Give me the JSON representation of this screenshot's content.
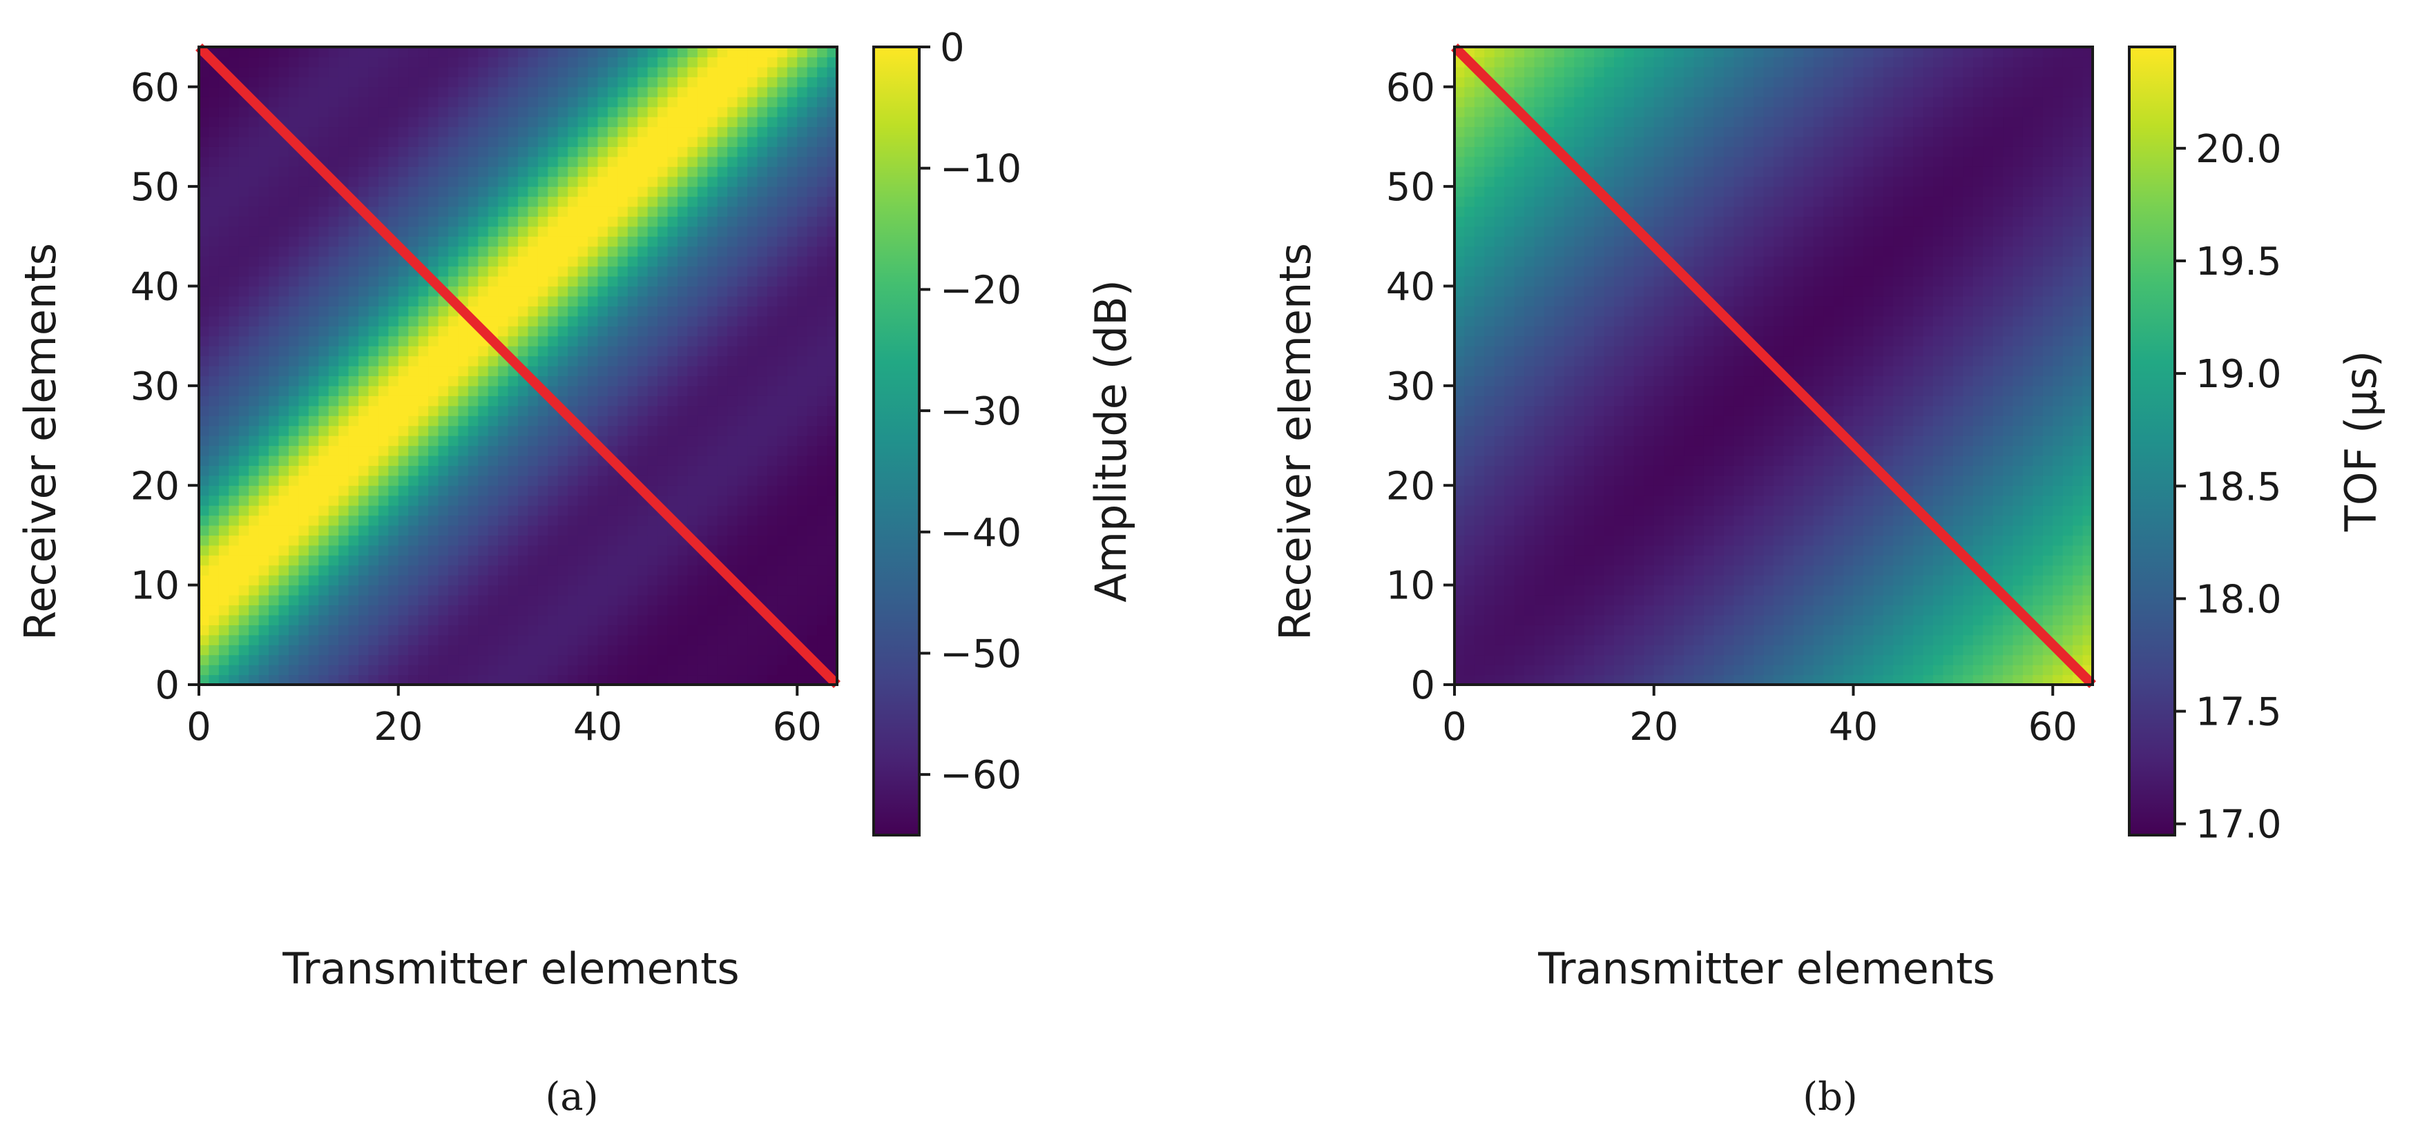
{
  "chart_data": [
    {
      "type": "heatmap",
      "caption": "(a)",
      "xlabel": "Transmitter elements",
      "ylabel": "Receiver elements",
      "xlim": [
        0,
        64
      ],
      "ylim": [
        0,
        64
      ],
      "xticks": [
        0,
        20,
        40,
        60
      ],
      "yticks": [
        0,
        10,
        20,
        30,
        40,
        50,
        60
      ],
      "colorbar": {
        "label": "Amplitude (dB)",
        "range": [
          -65,
          0
        ],
        "ticks": [
          0,
          -10,
          -20,
          -30,
          -40,
          -50,
          -60
        ],
        "tick_labels": [
          "0",
          "−10",
          "−20",
          "−30",
          "−40",
          "−50",
          "−60"
        ],
        "colormap": "viridis"
      },
      "field": {
        "description_values": "amplitude in dB as function of transmitter (x) and receiver (y) index",
        "peak_band_center_offset": 8,
        "peak_band_width": 9,
        "min_value": -65,
        "max_value": 0
      },
      "overlay_line": {
        "from": [
          0,
          64
        ],
        "to": [
          64,
          0
        ],
        "color": "#e8262b"
      }
    },
    {
      "type": "heatmap",
      "caption": "(b)",
      "xlabel": "Transmitter elements",
      "ylabel": "Receiver elements",
      "xlim": [
        0,
        64
      ],
      "ylim": [
        0,
        64
      ],
      "xticks": [
        0,
        20,
        40,
        60
      ],
      "yticks": [
        0,
        10,
        20,
        30,
        40,
        50,
        60
      ],
      "colorbar": {
        "label": "TOF (μs)",
        "range": [
          16.95,
          20.45
        ],
        "ticks": [
          17.0,
          17.5,
          18.0,
          18.5,
          19.0,
          19.5,
          20.0
        ],
        "tick_labels": [
          "17.0",
          "17.5",
          "18.0",
          "18.5",
          "19.0",
          "19.5",
          "20.0"
        ],
        "colormap": "viridis"
      },
      "field": {
        "min_value": 17.0,
        "max_value": 20.4,
        "minimum_along": "x = y"
      },
      "overlay_line": {
        "from": [
          0,
          64
        ],
        "to": [
          64,
          0
        ],
        "color": "#e8262b"
      }
    }
  ]
}
